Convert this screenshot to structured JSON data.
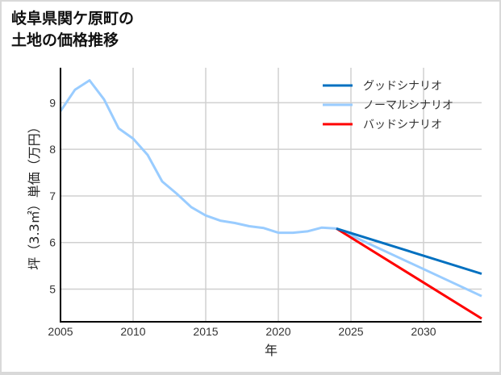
{
  "title_lines": [
    "岐阜県関ケ原町の",
    "土地の価格推移"
  ],
  "chart_data": {
    "type": "line",
    "title": "岐阜県関ケ原町の土地の価格推移",
    "xlabel": "年",
    "ylabel": "坪（3.3㎡）単価（万円）",
    "xlim": [
      2005,
      2034
    ],
    "ylim": [
      4.3,
      9.75
    ],
    "grid": true,
    "legend_position": "upper right",
    "x_ticks": [
      2005,
      2010,
      2015,
      2020,
      2025,
      2030
    ],
    "y_ticks": [
      5,
      6,
      7,
      8,
      9
    ],
    "series": [
      {
        "name": "グッドシナリオ",
        "color": "#0070c0",
        "x": [
          2024,
          2034
        ],
        "values": [
          6.3,
          5.33
        ]
      },
      {
        "name": "ノーマルシナリオ",
        "color": "#99ccff",
        "x": [
          2005,
          2006,
          2007,
          2008,
          2009,
          2010,
          2011,
          2012,
          2013,
          2014,
          2015,
          2016,
          2017,
          2018,
          2019,
          2020,
          2021,
          2022,
          2023,
          2024,
          2034
        ],
        "values": [
          8.82,
          9.28,
          9.48,
          9.07,
          8.45,
          8.23,
          7.88,
          7.31,
          7.05,
          6.76,
          6.58,
          6.47,
          6.42,
          6.35,
          6.31,
          6.21,
          6.21,
          6.24,
          6.32,
          6.3,
          4.85
        ]
      },
      {
        "name": "バッドシナリオ",
        "color": "#ff0000",
        "x": [
          2024,
          2034
        ],
        "values": [
          6.3,
          4.37
        ]
      }
    ]
  }
}
